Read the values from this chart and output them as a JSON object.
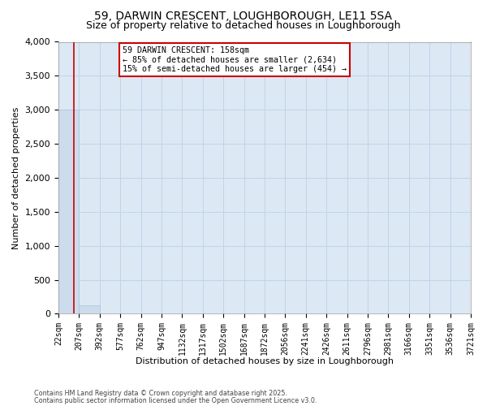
{
  "title1": "59, DARWIN CRESCENT, LOUGHBOROUGH, LE11 5SA",
  "title2": "Size of property relative to detached houses in Loughborough",
  "xlabel": "Distribution of detached houses by size in Loughborough",
  "ylabel": "Number of detached properties",
  "bin_edges": [
    22,
    207,
    392,
    577,
    762,
    947,
    1132,
    1317,
    1502,
    1687,
    1872,
    2056,
    2241,
    2426,
    2611,
    2796,
    2981,
    3166,
    3351,
    3536,
    3721
  ],
  "bar_heights": [
    3000,
    120,
    0,
    0,
    0,
    0,
    0,
    0,
    0,
    0,
    0,
    0,
    0,
    0,
    0,
    0,
    0,
    0,
    0,
    0
  ],
  "bar_color": "#ccdcec",
  "bar_edge_color": "#aac4dc",
  "property_size": 158,
  "vline_color": "#cc0000",
  "annotation_line1": "59 DARWIN CRESCENT: 158sqm",
  "annotation_line2": "← 85% of detached houses are smaller (2,634)",
  "annotation_line3": "15% of semi-detached houses are larger (454) →",
  "annotation_box_facecolor": "#ffffff",
  "annotation_box_edgecolor": "#cc0000",
  "ylim": [
    0,
    4000
  ],
  "yticks": [
    0,
    500,
    1000,
    1500,
    2000,
    2500,
    3000,
    3500,
    4000
  ],
  "grid_color": "#c0d4e8",
  "ax_background": "#dce8f4",
  "fig_background": "#ffffff",
  "footnote1": "Contains HM Land Registry data © Crown copyright and database right 2025.",
  "footnote2": "Contains public sector information licensed under the Open Government Licence v3.0.",
  "title1_fontsize": 10,
  "title2_fontsize": 9,
  "tick_fontsize": 7,
  "ylabel_fontsize": 8,
  "xlabel_fontsize": 8
}
